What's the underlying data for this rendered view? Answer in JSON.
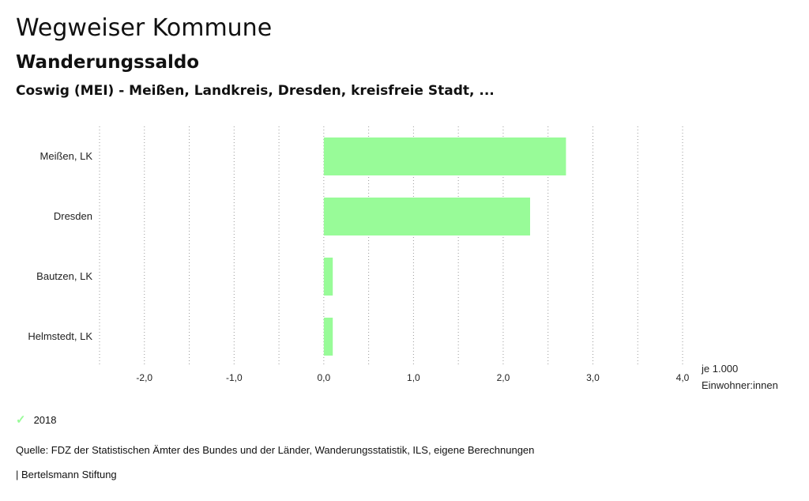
{
  "header": {
    "title": "Wegweiser Kommune",
    "subtitle": "Wanderungssaldo",
    "region": "Coswig (MEI) - Meißen, Landkreis, Dresden, kreisfreie Stadt, ..."
  },
  "chart_data": {
    "type": "bar",
    "orientation": "horizontal",
    "categories": [
      "Meißen, LK",
      "Dresden",
      "Bautzen, LK",
      "Helmstedt, LK"
    ],
    "series": [
      {
        "name": "2018",
        "values": [
          2.7,
          2.3,
          0.1,
          0.1
        ],
        "color": "#98fb98"
      }
    ],
    "xlim": [
      -2.5,
      4.0
    ],
    "xticks": [
      -2.0,
      -1.0,
      0.0,
      1.0,
      2.0,
      3.0,
      4.0
    ],
    "xtick_labels": [
      "-2,0",
      "-1,0",
      "0,0",
      "1,0",
      "2,0",
      "3,0",
      "4,0"
    ],
    "xlabel_line1": "je 1.000",
    "xlabel_line2": "Einwohner:innen",
    "grid": true
  },
  "legend": {
    "label": "2018",
    "color": "#98fb98"
  },
  "source": "Quelle: FDZ der Statistischen Ämter des Bundes und der Länder, Wanderungsstatistik, ILS, eigene Berechnungen",
  "footer": "| Bertelsmann Stiftung"
}
